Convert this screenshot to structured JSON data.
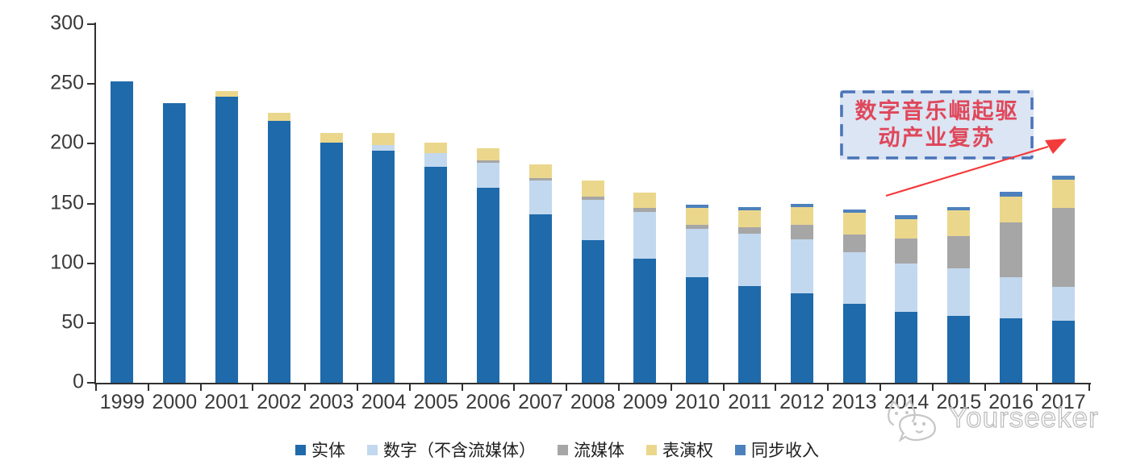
{
  "chart_data": {
    "type": "bar",
    "subtype": "stacked",
    "title": "",
    "categories": [
      "1999",
      "2000",
      "2001",
      "2002",
      "2003",
      "2004",
      "2005",
      "2006",
      "2007",
      "2008",
      "2009",
      "2010",
      "2011",
      "2012",
      "2013",
      "2014",
      "2015",
      "2016",
      "2017"
    ],
    "series": [
      {
        "name": "实体",
        "color": "#1e6aab",
        "values": [
          252,
          234,
          239,
          219,
          201,
          194,
          181,
          163,
          141,
          119,
          104,
          88,
          81,
          75,
          66,
          59,
          56,
          54,
          52
        ]
      },
      {
        "name": "数字（不含流媒体）",
        "color": "#c2d8ef",
        "values": [
          0,
          0,
          0,
          0,
          0,
          5,
          11,
          21,
          28,
          34,
          39,
          41,
          44,
          45,
          43,
          41,
          40,
          34,
          28
        ]
      },
      {
        "name": "流媒体",
        "color": "#a6a6a6",
        "values": [
          0,
          0,
          0,
          0,
          0,
          0,
          0,
          2,
          2,
          3,
          3,
          3,
          5,
          12,
          15,
          21,
          27,
          46,
          66
        ]
      },
      {
        "name": "表演权",
        "color": "#ebd78c",
        "values": [
          0,
          0,
          5,
          7,
          8,
          10,
          9,
          10,
          12,
          13,
          13,
          14,
          14,
          15,
          18,
          16,
          21,
          22,
          24
        ]
      },
      {
        "name": "同步收入",
        "color": "#4d81bd",
        "values": [
          0,
          0,
          0,
          0,
          0,
          0,
          0,
          0,
          0,
          0,
          0,
          3,
          3,
          3,
          3,
          3,
          3,
          4,
          3
        ]
      }
    ],
    "ylim": [
      0,
      300
    ],
    "yticks": [
      0,
      50,
      100,
      150,
      200,
      250,
      300
    ],
    "grid": false,
    "legend_position": "bottom",
    "xlabel": "",
    "ylabel": ""
  },
  "annotation": {
    "line1": "数字音乐崛起驱",
    "line2": "动产业复苏",
    "text_color": "#e0475a",
    "border_color": "#4a74b8",
    "fill_color": "#dbe5f3"
  },
  "watermark": {
    "text": "Yourseeker",
    "logo": "cat-face-icon",
    "color": "#bdbdbd"
  },
  "colors": {
    "axis": "#303030",
    "tick_label": "#3a3a3a",
    "arrow": "#f43a3a"
  }
}
